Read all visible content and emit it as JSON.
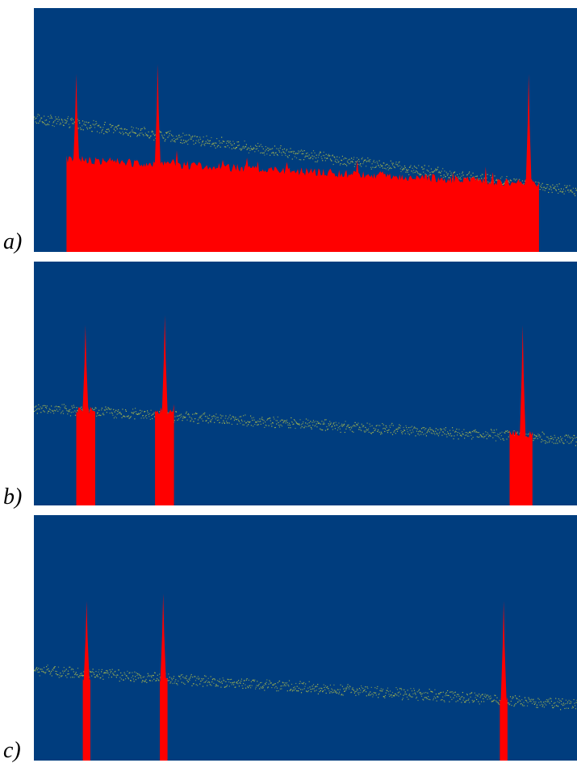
{
  "colors": {
    "background": "#003d7e",
    "highlight": "#ff0000",
    "trace": "#b5c24a"
  },
  "chart_data": [
    {
      "type": "area",
      "panel_label": "a)",
      "x_range": [
        0,
        1
      ],
      "y_range": [
        0,
        1
      ],
      "grid": false,
      "baseline": {
        "start": 0.55,
        "end": 0.25,
        "noise": 0.02
      },
      "regions": [
        {
          "x_start": 0.06,
          "x_end": 0.93,
          "fill_level_start": 0.38,
          "fill_level_end": 0.28,
          "noise": 0.035
        }
      ],
      "peaks": [
        {
          "x": 0.078,
          "height": 0.73
        },
        {
          "x": 0.228,
          "height": 0.77
        },
        {
          "x": 0.911,
          "height": 0.73
        }
      ]
    },
    {
      "type": "area",
      "panel_label": "b)",
      "x_range": [
        0,
        1
      ],
      "y_range": [
        0,
        1
      ],
      "grid": false,
      "baseline": {
        "start": 0.4,
        "end": 0.27,
        "noise": 0.02
      },
      "regions": [
        {
          "x_start": 0.078,
          "x_end": 0.113,
          "fill_level_start": 0.39,
          "fill_level_end": 0.39,
          "noise": 0.03
        },
        {
          "x_start": 0.223,
          "x_end": 0.258,
          "fill_level_start": 0.38,
          "fill_level_end": 0.38,
          "noise": 0.03
        },
        {
          "x_start": 0.876,
          "x_end": 0.918,
          "fill_level_start": 0.3,
          "fill_level_end": 0.29,
          "noise": 0.03
        }
      ],
      "peaks": [
        {
          "x": 0.095,
          "height": 0.74
        },
        {
          "x": 0.241,
          "height": 0.78
        },
        {
          "x": 0.9,
          "height": 0.74
        }
      ]
    },
    {
      "type": "area",
      "panel_label": "c)",
      "x_range": [
        0,
        1
      ],
      "y_range": [
        0,
        1
      ],
      "grid": false,
      "baseline": {
        "start": 0.37,
        "end": 0.23,
        "noise": 0.02
      },
      "regions": [
        {
          "x_start": 0.09,
          "x_end": 0.104,
          "fill_level_start": 0.33,
          "fill_level_end": 0.33,
          "noise": 0.02
        },
        {
          "x_start": 0.232,
          "x_end": 0.246,
          "fill_level_start": 0.33,
          "fill_level_end": 0.33,
          "noise": 0.02
        },
        {
          "x_start": 0.858,
          "x_end": 0.872,
          "fill_level_start": 0.25,
          "fill_level_end": 0.25,
          "noise": 0.02
        }
      ],
      "peaks": [
        {
          "x": 0.097,
          "height": 0.65
        },
        {
          "x": 0.238,
          "height": 0.68
        },
        {
          "x": 0.865,
          "height": 0.65
        }
      ]
    }
  ]
}
